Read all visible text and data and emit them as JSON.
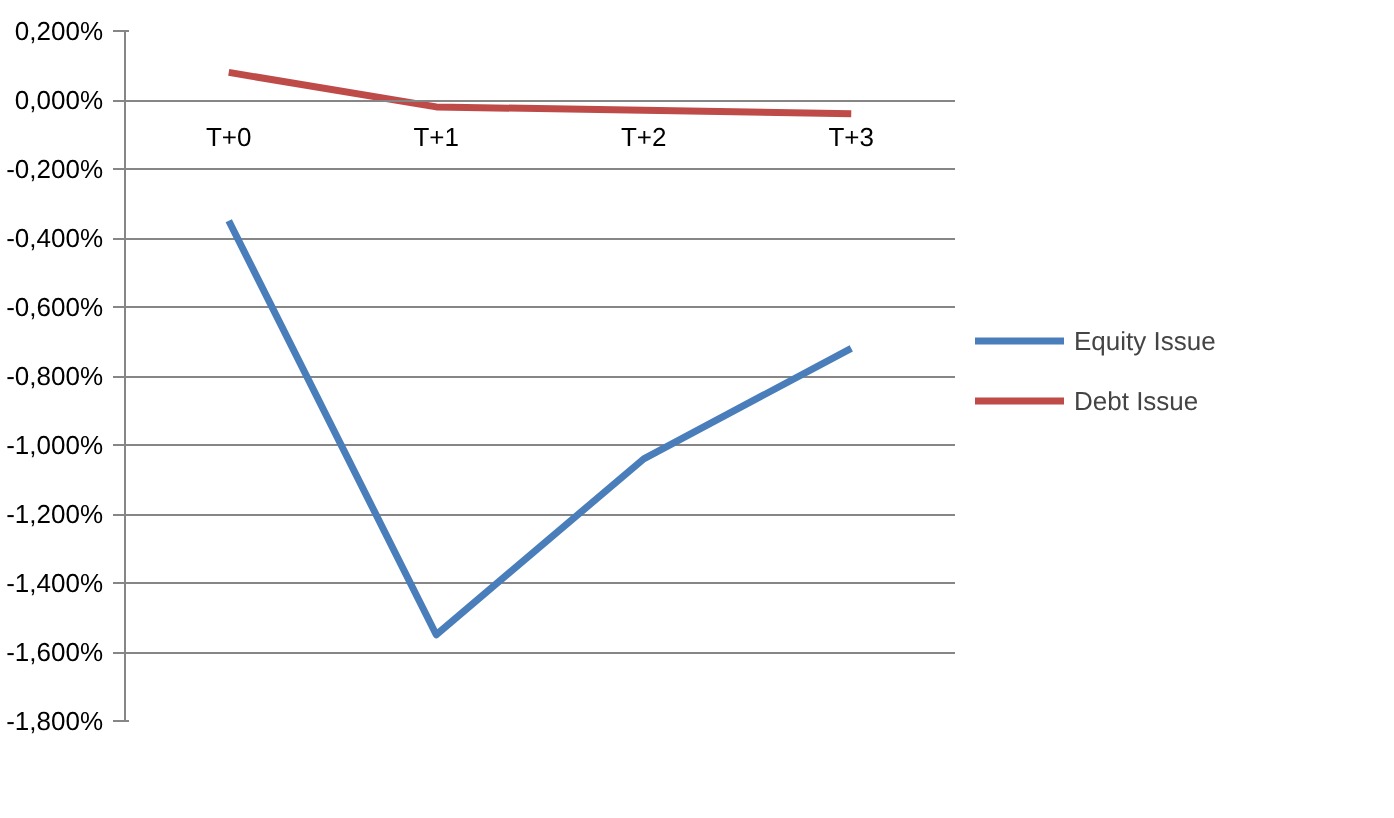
{
  "chart_data": {
    "type": "line",
    "categories": [
      "T+0",
      "T+1",
      "T+2",
      "T+3"
    ],
    "series": [
      {
        "name": "Equity Issue",
        "color": "#4a7ebb",
        "values": [
          -0.35,
          -1.55,
          -1.04,
          -0.72
        ]
      },
      {
        "name": "Debt Issue",
        "color": "#be4b48",
        "values": [
          0.08,
          -0.02,
          -0.03,
          -0.04
        ]
      }
    ],
    "ylim": [
      -1.8,
      0.2
    ],
    "yticks": [
      {
        "value": 0.2,
        "label": "0,200%"
      },
      {
        "value": 0,
        "label": "0,000%"
      },
      {
        "value": -0.2,
        "label": "-0,200%"
      },
      {
        "value": -0.4,
        "label": "-0,400%"
      },
      {
        "value": -0.6,
        "label": "-0,600%"
      },
      {
        "value": -0.8,
        "label": "-0,800%"
      },
      {
        "value": -1.0,
        "label": "-1,000%"
      },
      {
        "value": -1.2,
        "label": "-1,200%"
      },
      {
        "value": -1.4,
        "label": "-1,400%"
      },
      {
        "value": -1.6,
        "label": "-1,600%"
      },
      {
        "value": -1.8,
        "label": "-1,800%"
      }
    ],
    "grid": "y",
    "legend": "right",
    "marker": "none",
    "line_style": "solid"
  }
}
